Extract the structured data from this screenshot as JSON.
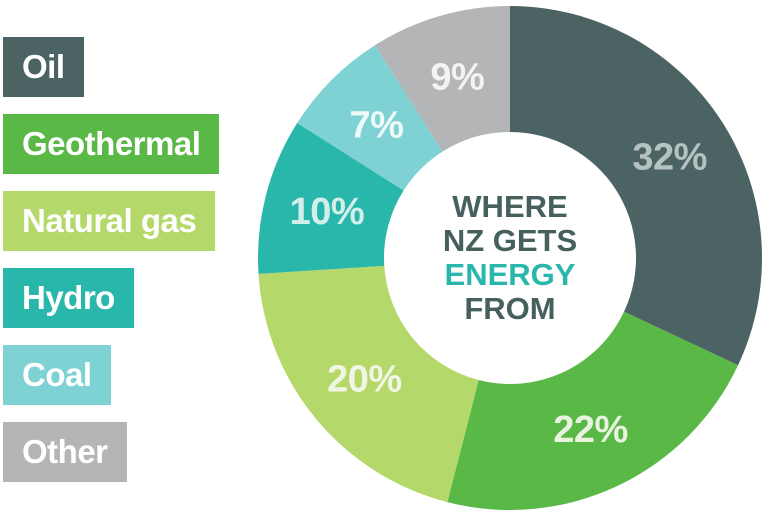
{
  "title": {
    "line1": "WHERE",
    "line2": "NZ GETS",
    "line3": "ENERGY",
    "line4": "FROM"
  },
  "legend": {
    "position": "left",
    "items": [
      {
        "label": "Oil"
      },
      {
        "label": "Geothermal"
      },
      {
        "label": "Natural gas"
      },
      {
        "label": "Hydro"
      },
      {
        "label": "Coal"
      },
      {
        "label": "Other"
      }
    ]
  },
  "chart_data": {
    "type": "pie",
    "subtype": "donut",
    "title": "WHERE NZ GETS ENERGY FROM",
    "categories": [
      "Oil",
      "Geothermal",
      "Natural gas",
      "Hydro",
      "Coal",
      "Other"
    ],
    "values": [
      32,
      22,
      20,
      10,
      7,
      9
    ],
    "labels": [
      "32%",
      "22%",
      "20%",
      "10%",
      "7%",
      "9%"
    ],
    "unit": "%",
    "colors": [
      "#4b6362",
      "#5ab847",
      "#b4d869",
      "#2ab7ab",
      "#7ed2d4",
      "#b3b5b7"
    ],
    "label_colors": [
      "#b5c2c2",
      "#e8f4df",
      "#f1f6e4",
      "#d3efeb",
      "#eefafa",
      "#f2f3f3"
    ],
    "start_angle_deg": 0,
    "direction": "clockwise",
    "center": [
      510,
      258
    ],
    "outer_radius": 252,
    "inner_radius": 126,
    "label_radius": 189,
    "legend_position": "left",
    "accent_color": "#2ab7ab",
    "title_color": "#46605e"
  }
}
